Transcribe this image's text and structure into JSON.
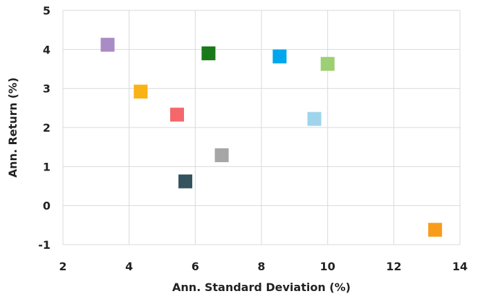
{
  "chart_data": {
    "type": "scatter",
    "title": "",
    "xlabel": "Ann. Standard Deviation (%)",
    "ylabel": "Ann. Return (%)",
    "xlim": [
      2,
      14
    ],
    "ylim": [
      -1,
      5
    ],
    "x_ticks": [
      2,
      4,
      6,
      8,
      10,
      12,
      14
    ],
    "y_ticks": [
      -1,
      0,
      1,
      2,
      3,
      4,
      5
    ],
    "grid": true,
    "legend": "none",
    "points": [
      {
        "x": 3.35,
        "y": 4.12,
        "color": "#a98bc6"
      },
      {
        "x": 4.35,
        "y": 2.92,
        "color": "#f9b316"
      },
      {
        "x": 5.45,
        "y": 2.33,
        "color": "#f4676a"
      },
      {
        "x": 5.7,
        "y": 0.62,
        "color": "#35535e"
      },
      {
        "x": 6.4,
        "y": 3.9,
        "color": "#1a7a1a"
      },
      {
        "x": 6.8,
        "y": 1.29,
        "color": "#a6a6a6"
      },
      {
        "x": 8.55,
        "y": 3.82,
        "color": "#00a7ec"
      },
      {
        "x": 9.6,
        "y": 2.22,
        "color": "#9fd4ec"
      },
      {
        "x": 10.0,
        "y": 3.63,
        "color": "#9dcf73"
      },
      {
        "x": 13.25,
        "y": -0.62,
        "color": "#f99c1c"
      }
    ]
  }
}
